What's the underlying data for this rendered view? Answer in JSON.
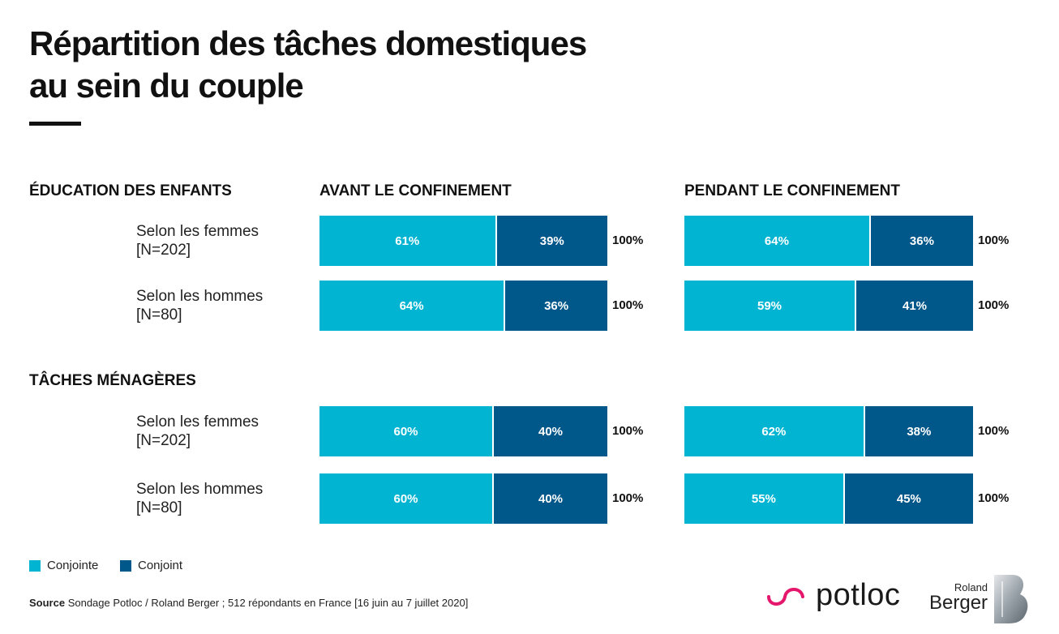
{
  "title": {
    "line1": "Répartition des tâches domestiques",
    "line2": "au sein du couple"
  },
  "columns": {
    "before": "AVANT LE CONFINEMENT",
    "during": "PENDANT LE CONFINEMENT"
  },
  "colors": {
    "conjointe": "#00b4d2",
    "conjoint": "#00578a"
  },
  "chart_data": {
    "type": "bar",
    "orientation": "horizontal-stacked-100",
    "series": [
      "Conjointe",
      "Conjoint"
    ],
    "groups": [
      {
        "name": "ÉDUCATION DES ENFANTS",
        "rows": [
          {
            "label": "Selon les femmes",
            "n": "[N=202]",
            "before": {
              "values": [
                61,
                39
              ],
              "labels": [
                "61%",
                "39%"
              ],
              "total": "100%"
            },
            "during": {
              "values": [
                64,
                36
              ],
              "labels": [
                "64%",
                "36%"
              ],
              "total": "100%"
            }
          },
          {
            "label": "Selon les hommes",
            "n": "[N=80]",
            "before": {
              "values": [
                64,
                36
              ],
              "labels": [
                "64%",
                "36%"
              ],
              "total": "100%"
            },
            "during": {
              "values": [
                59,
                41
              ],
              "labels": [
                "59%",
                "41%"
              ],
              "total": "100%"
            }
          }
        ]
      },
      {
        "name": "TÂCHES MÉNAGÈRES",
        "rows": [
          {
            "label": "Selon les femmes",
            "n": "[N=202]",
            "before": {
              "values": [
                60,
                40
              ],
              "labels": [
                "60%",
                "40%"
              ],
              "total": "100%"
            },
            "during": {
              "values": [
                62,
                38
              ],
              "labels": [
                "62%",
                "38%"
              ],
              "total": "100%"
            }
          },
          {
            "label": "Selon les hommes",
            "n": "[N=80]",
            "before": {
              "values": [
                60,
                40
              ],
              "labels": [
                "60%",
                "40%"
              ],
              "total": "100%"
            },
            "during": {
              "values": [
                55,
                45
              ],
              "labels": [
                "55%",
                "45%"
              ],
              "total": "100%"
            }
          }
        ]
      }
    ]
  },
  "legend": {
    "conjointe": "Conjointe",
    "conjoint": "Conjoint"
  },
  "source": {
    "label": "Source",
    "text": " Sondage Potloc / Roland Berger ; 512 répondants en France [16 juin au 7 juillet 2020]"
  },
  "logos": {
    "potloc": "potloc",
    "rb_small": "Roland",
    "rb_big": "Berger"
  }
}
